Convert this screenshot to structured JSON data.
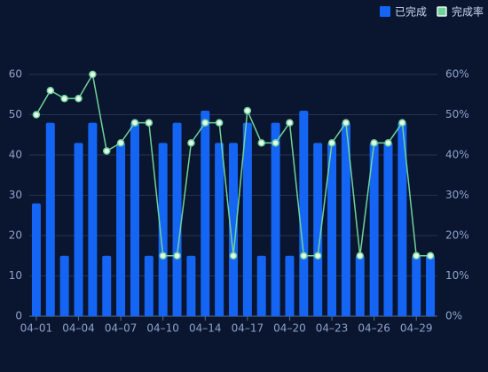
{
  "chart_data": {
    "type": "bar-line",
    "categories": [
      "04–01",
      null,
      null,
      "04–04",
      null,
      null,
      "04–07",
      null,
      null,
      "04–10",
      null,
      null,
      "04–14",
      null,
      null,
      "04–17",
      null,
      null,
      "04–20",
      null,
      null,
      "04–23",
      null,
      null,
      "04–26",
      null,
      null,
      "04–29",
      null
    ],
    "series": [
      {
        "name": "已完成",
        "type": "bar",
        "color": "#1565f5",
        "values": [
          28,
          48,
          15,
          43,
          48,
          15,
          43,
          48,
          15,
          43,
          48,
          15,
          51,
          43,
          43,
          48,
          15,
          48,
          15,
          51,
          43,
          43,
          48,
          15,
          43,
          43,
          48,
          15,
          15
        ]
      },
      {
        "name": "完成率",
        "type": "line",
        "axis": "y2",
        "color": "#6fd39a",
        "values": [
          50,
          56,
          54,
          54,
          60,
          41,
          43,
          48,
          48,
          15,
          15,
          43,
          48,
          48,
          15,
          51,
          43,
          43,
          48,
          15,
          15,
          43,
          48,
          15,
          43,
          43,
          48,
          15,
          15
        ]
      }
    ],
    "ylim": [
      0,
      60
    ],
    "yticks": [
      0,
      10,
      20,
      30,
      40,
      50,
      60
    ],
    "y2lim": [
      0,
      60
    ],
    "y2ticks": [
      {
        "value": 0,
        "label": "0%"
      },
      {
        "value": 10,
        "label": "10%"
      },
      {
        "value": 20,
        "label": "20%"
      },
      {
        "value": 30,
        "label": "30%"
      },
      {
        "value": 40,
        "label": "40%"
      },
      {
        "value": 50,
        "label": "50%"
      },
      {
        "value": 60,
        "label": "60%"
      }
    ],
    "grid": true,
    "legend": "top-right"
  }
}
